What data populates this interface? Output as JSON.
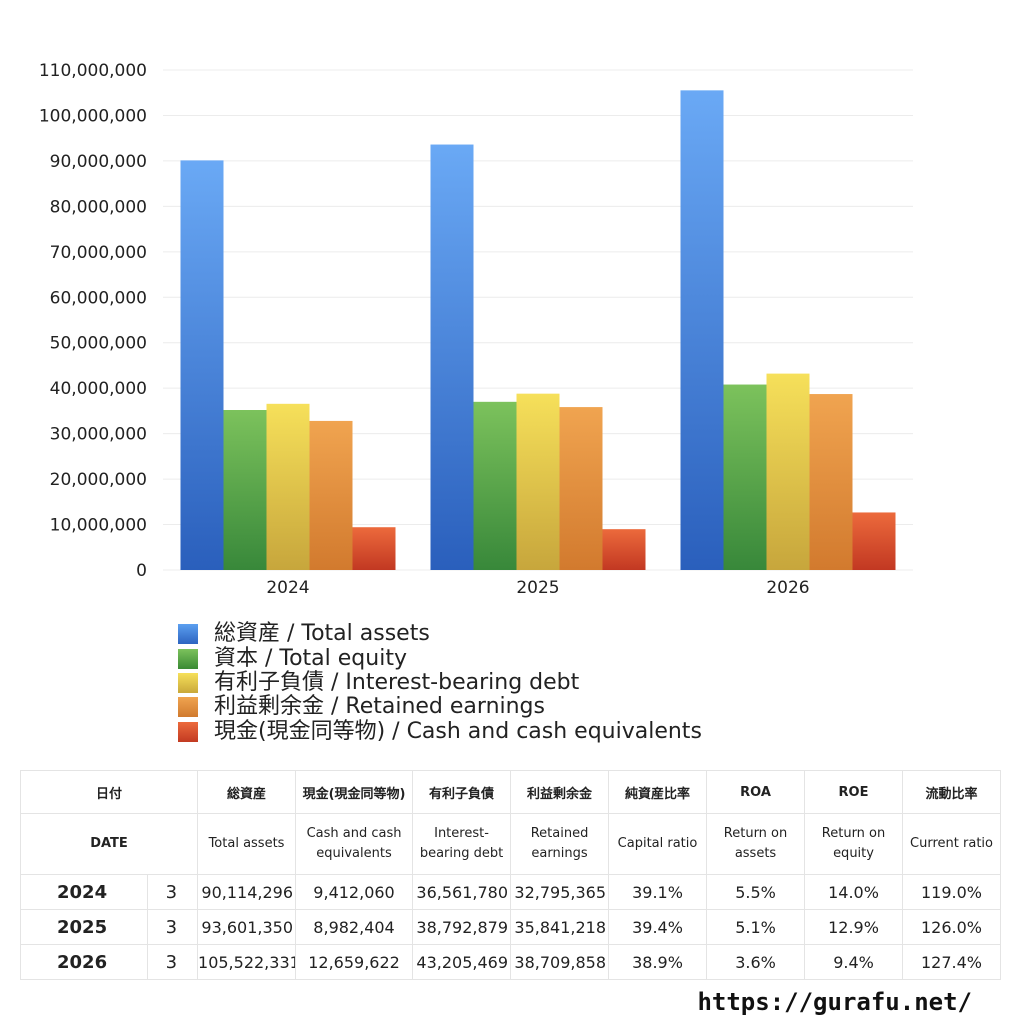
{
  "chart_data": {
    "type": "bar",
    "categories": [
      "2024",
      "2025",
      "2026"
    ],
    "series": [
      {
        "name": "総資産 / Total assets",
        "values": [
          90114296,
          93601350,
          105522331
        ],
        "color": "#3f7fd6"
      },
      {
        "name": "資本 / Total equity",
        "values": [
          35200000,
          37000000,
          40800000
        ],
        "color": "#5aae4a"
      },
      {
        "name": "有利子負債 / Interest-bearing debt",
        "values": [
          36561780,
          38792879,
          43205469
        ],
        "color": "#e8cc44"
      },
      {
        "name": "利益剰余金 / Retained earnings",
        "values": [
          32795365,
          35841218,
          38709858
        ],
        "color": "#e08a38"
      },
      {
        "name": "現金(現金同等物)  /  Cash and cash equivalents",
        "values": [
          9412060,
          8982404,
          12659622
        ],
        "color": "#d84a2a"
      }
    ],
    "yticks": [
      "0",
      "10,000,000",
      "20,000,000",
      "30,000,000",
      "40,000,000",
      "50,000,000",
      "60,000,000",
      "70,000,000",
      "80,000,000",
      "90,000,000",
      "100,000,000",
      "110,000,000"
    ],
    "ylim": [
      0,
      110000000
    ],
    "grid": true,
    "legend_position": "bottom"
  },
  "table": {
    "headers_jp": [
      "日付",
      "総資産",
      "現金(現金同等物)",
      "有利子負債",
      "利益剰余金",
      "純資産比率",
      "ROA",
      "ROE",
      "流動比率"
    ],
    "headers_en": [
      "DATE",
      "Total assets",
      "Cash and cash equivalents",
      "Interest-bearing debt",
      "Retained earnings",
      "Capital ratio",
      "Return on assets",
      "Return on equity",
      "Current ratio"
    ],
    "rows": [
      {
        "year": "2024",
        "month": "3",
        "total_assets": "90,114,296",
        "cash": "9,412,060",
        "debt": "36,561,780",
        "retained": "32,795,365",
        "capital_ratio": "39.1%",
        "roa": "5.5%",
        "roe": "14.0%",
        "current_ratio": "119.0%"
      },
      {
        "year": "2025",
        "month": "3",
        "total_assets": "93,601,350",
        "cash": "8,982,404",
        "debt": "38,792,879",
        "retained": "35,841,218",
        "capital_ratio": "39.4%",
        "roa": "5.1%",
        "roe": "12.9%",
        "current_ratio": "126.0%"
      },
      {
        "year": "2026",
        "month": "3",
        "total_assets": "105,522,331",
        "cash": "12,659,622",
        "debt": "43,205,469",
        "retained": "38,709,858",
        "capital_ratio": "38.9%",
        "roa": "3.6%",
        "roe": "9.4%",
        "current_ratio": "127.4%"
      }
    ]
  },
  "footer": {
    "url": "https://gurafu.net/"
  }
}
